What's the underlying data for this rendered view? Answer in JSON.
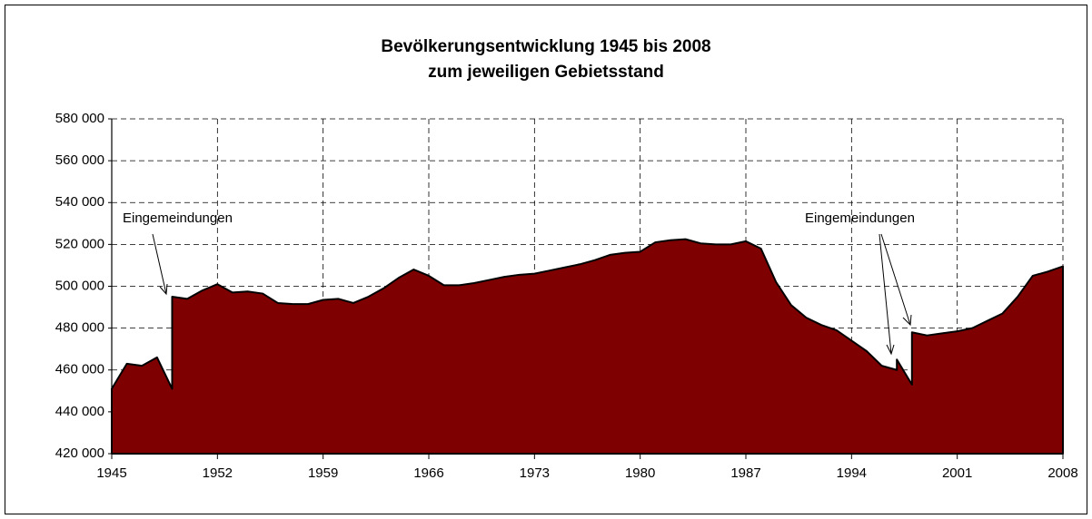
{
  "chart_data": {
    "type": "area",
    "title": "Bevölkerungsentwicklung 1945 bis 2008",
    "subtitle": "zum jeweiligen Gebietsstand",
    "annotations": [
      "Eingemeindungen",
      "Eingemeindungen"
    ],
    "x": [
      1945,
      1946,
      1947,
      1948,
      1949,
      1949,
      1950,
      1951,
      1952,
      1953,
      1954,
      1955,
      1956,
      1957,
      1958,
      1959,
      1960,
      1961,
      1962,
      1963,
      1964,
      1965,
      1966,
      1967,
      1968,
      1969,
      1970,
      1971,
      1972,
      1973,
      1974,
      1975,
      1976,
      1977,
      1978,
      1979,
      1980,
      1981,
      1982,
      1983,
      1984,
      1985,
      1986,
      1987,
      1988,
      1989,
      1990,
      1991,
      1992,
      1993,
      1994,
      1995,
      1996,
      1997,
      1997,
      1998,
      1998,
      1999,
      2000,
      2001,
      2002,
      2003,
      2004,
      2005,
      2006,
      2007,
      2008
    ],
    "series": [
      {
        "color": "#7f0000",
        "values": [
          451000,
          463000,
          462000,
          466000,
          451000,
          495000,
          494000,
          498000,
          501000,
          497000,
          497500,
          496500,
          492000,
          491500,
          491500,
          493500,
          494000,
          492000,
          495000,
          499000,
          504000,
          508000,
          505000,
          500500,
          500500,
          501500,
          503000,
          504500,
          505500,
          506000,
          507500,
          509000,
          510500,
          512500,
          515000,
          516000,
          516500,
          521000,
          522000,
          522500,
          520500,
          520000,
          520000,
          521500,
          518000,
          502000,
          491000,
          485000,
          481500,
          479000,
          474000,
          469000,
          462000,
          460000,
          465000,
          453000,
          478000,
          476500,
          477500,
          478500,
          480000,
          483500,
          487000,
          495000,
          505000,
          507000,
          509500
        ]
      }
    ],
    "xlim": [
      1945,
      2008
    ],
    "xticks": [
      1945,
      1952,
      1959,
      1966,
      1973,
      1980,
      1987,
      1994,
      2001,
      2008
    ],
    "ylim": [
      420000,
      580000
    ],
    "yticks": [
      {
        "value": 420000,
        "label": "420 000"
      },
      {
        "value": 440000,
        "label": "440 000"
      },
      {
        "value": 460000,
        "label": "460 000"
      },
      {
        "value": 480000,
        "label": "480 000"
      },
      {
        "value": 500000,
        "label": "500 000"
      },
      {
        "value": 520000,
        "label": "520 000"
      },
      {
        "value": 540000,
        "label": "540 000"
      },
      {
        "value": 560000,
        "label": "560 000"
      },
      {
        "value": 580000,
        "label": "580 000"
      }
    ],
    "grid": true
  }
}
